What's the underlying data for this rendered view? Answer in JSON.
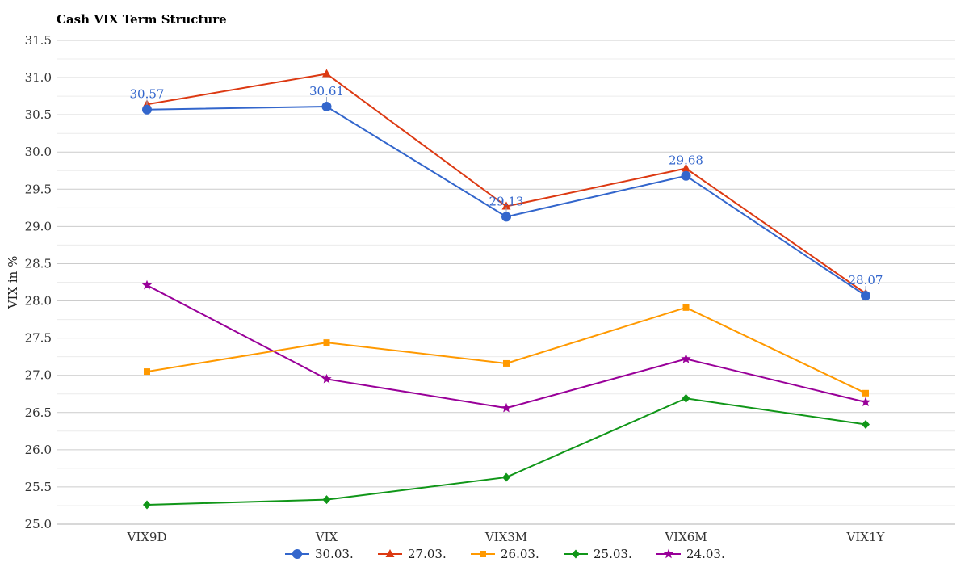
{
  "chart_data": {
    "type": "line",
    "title": "Cash VIX Term Structure",
    "ylabel": "VIX in %",
    "xlabel": "",
    "categories": [
      "VIX9D",
      "VIX",
      "VIX3M",
      "VIX6M",
      "VIX1Y"
    ],
    "ylim": [
      25.0,
      31.5
    ],
    "ytick_step": 0.5,
    "grid": true,
    "legend_position": "bottom",
    "series": [
      {
        "name": "30.03.",
        "color": "#3366cc",
        "marker": "circle",
        "values": [
          30.57,
          30.61,
          29.13,
          29.68,
          28.07
        ],
        "data_labels": [
          "30.57",
          "30.61",
          "29.13",
          "29.68",
          "28.07"
        ]
      },
      {
        "name": "27.03.",
        "color": "#dc3912",
        "marker": "triangle",
        "values": [
          30.64,
          31.05,
          29.27,
          29.78,
          28.1
        ]
      },
      {
        "name": "26.03.",
        "color": "#ff9900",
        "marker": "square",
        "values": [
          27.05,
          27.44,
          27.16,
          27.91,
          26.76
        ]
      },
      {
        "name": "25.03.",
        "color": "#109618",
        "marker": "diamond",
        "values": [
          25.26,
          25.33,
          25.63,
          26.69,
          26.34
        ]
      },
      {
        "name": "24.03.",
        "color": "#990099",
        "marker": "star",
        "values": [
          28.21,
          26.95,
          26.56,
          27.22,
          26.64
        ]
      }
    ]
  }
}
